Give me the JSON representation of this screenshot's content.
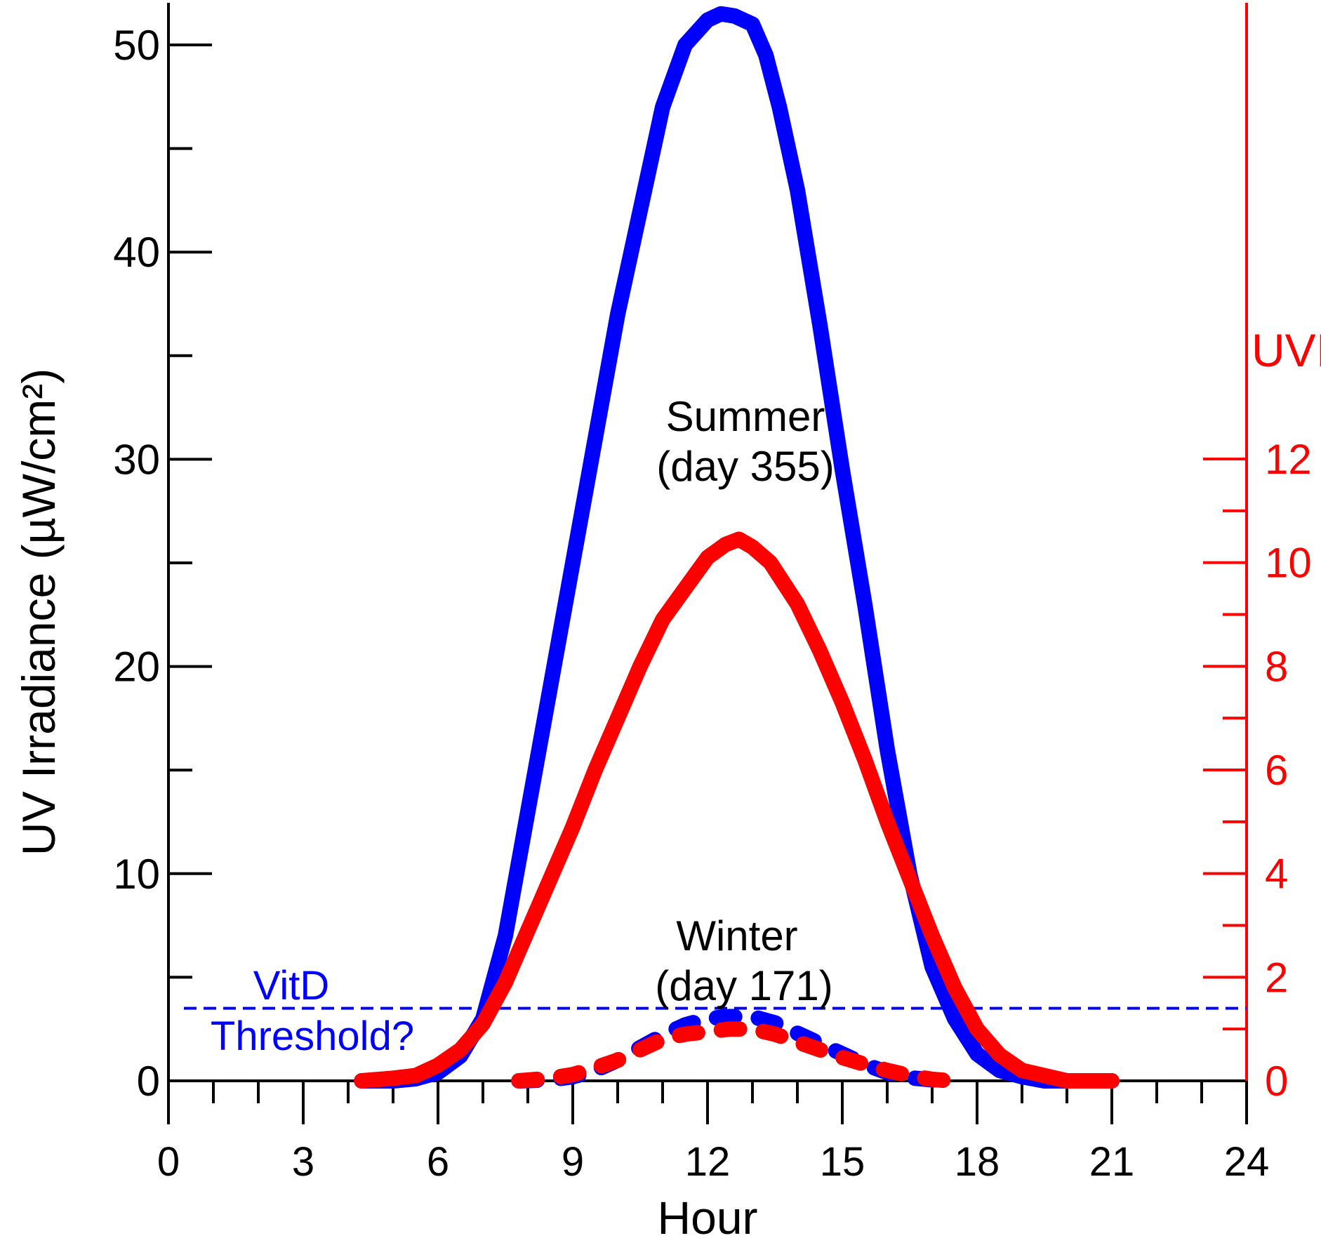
{
  "chart_data": {
    "type": "line",
    "xlabel": "Hour",
    "ylabel": "UV Irradiance (µW/cm²)",
    "y2label": "UVI",
    "xlim": [
      0,
      24
    ],
    "ylim": [
      0,
      52
    ],
    "y2lim": [
      0,
      20.8
    ],
    "x_ticks": [
      "0",
      "3",
      "6",
      "9",
      "12",
      "15",
      "18",
      "21",
      "24"
    ],
    "y_ticks": [
      "0",
      "10",
      "20",
      "30",
      "40",
      "50"
    ],
    "y2_ticks": [
      "0",
      "2",
      "4",
      "6",
      "8",
      "10",
      "12"
    ],
    "grid": false,
    "colors": {
      "irradiance": "#0000ff",
      "uvi": "#ff0000",
      "axis": "#000000",
      "uvi_axis": "#ff0000"
    },
    "threshold": {
      "label_line1": "VitD",
      "label_line2": "Threshold?",
      "value": 3.5,
      "color": "#0000ff",
      "style": "dashed"
    },
    "annotations": {
      "summer_line1": "Summer",
      "summer_line2": "(day 355)",
      "winter_line1": "Winter",
      "winter_line2": "(day 171)"
    },
    "series": [
      {
        "axis": "left",
        "color": "#0000ff",
        "style": "solid",
        "x": [
          4.3,
          5.0,
          5.5,
          6.0,
          6.5,
          7.0,
          7.5,
          8.0,
          8.5,
          9.0,
          9.5,
          10.0,
          10.5,
          11.0,
          11.5,
          12.0,
          12.3,
          12.6,
          13.0,
          13.3,
          13.6,
          14.0,
          14.5,
          15.0,
          15.5,
          16.0,
          16.5,
          17.0,
          17.5,
          18.0,
          18.5,
          19.0,
          19.5,
          20.0,
          20.5,
          21.0
        ],
        "y": [
          0.0,
          0.0,
          0.1,
          0.4,
          1.2,
          3.0,
          7.0,
          13.0,
          19.0,
          25.0,
          31.0,
          37.0,
          42.0,
          47.0,
          50.0,
          51.2,
          51.5,
          51.4,
          51.0,
          49.5,
          47.0,
          43.0,
          36.5,
          29.5,
          23.0,
          16.0,
          10.0,
          5.5,
          3.0,
          1.3,
          0.5,
          0.2,
          0.0,
          0.0,
          0.0,
          0.0
        ]
      },
      {
        "axis": "right",
        "color": "#ff0000",
        "style": "solid",
        "x": [
          4.3,
          5.0,
          5.5,
          6.0,
          6.5,
          7.0,
          7.5,
          8.0,
          8.5,
          9.0,
          9.5,
          10.0,
          10.5,
          11.0,
          11.5,
          12.0,
          12.4,
          12.7,
          13.0,
          13.4,
          14.0,
          14.5,
          15.0,
          15.5,
          16.0,
          16.5,
          17.0,
          17.5,
          18.0,
          18.5,
          19.0,
          19.5,
          20.0,
          20.5,
          21.0
        ],
        "y": [
          0.0,
          0.05,
          0.1,
          0.3,
          0.6,
          1.1,
          1.9,
          2.9,
          3.9,
          4.9,
          6.0,
          7.0,
          8.0,
          8.9,
          9.5,
          10.1,
          10.35,
          10.45,
          10.3,
          10.0,
          9.2,
          8.3,
          7.3,
          6.2,
          5.0,
          3.9,
          2.8,
          1.8,
          1.0,
          0.5,
          0.2,
          0.1,
          0.0,
          0.0,
          0.0
        ]
      },
      {
        "axis": "left",
        "color": "#0000ff",
        "style": "dashed",
        "x": [
          7.8,
          8.5,
          9.0,
          9.5,
          10.0,
          10.5,
          11.0,
          11.5,
          12.0,
          12.5,
          13.0,
          13.5,
          14.0,
          14.5,
          15.0,
          15.5,
          16.0,
          16.5,
          17.0,
          17.4
        ],
        "y": [
          0.0,
          0.05,
          0.2,
          0.5,
          1.0,
          1.6,
          2.2,
          2.7,
          3.0,
          3.1,
          3.1,
          2.8,
          2.3,
          1.8,
          1.3,
          0.8,
          0.4,
          0.15,
          0.05,
          0.0
        ]
      },
      {
        "axis": "right",
        "color": "#ff0000",
        "style": "dashed",
        "x": [
          7.8,
          8.5,
          9.0,
          9.5,
          10.0,
          10.5,
          11.0,
          11.5,
          12.0,
          12.5,
          13.0,
          13.5,
          14.0,
          14.5,
          15.0,
          15.5,
          16.0,
          16.5,
          17.0,
          17.4
        ],
        "y": [
          0.0,
          0.05,
          0.12,
          0.25,
          0.4,
          0.6,
          0.8,
          0.9,
          0.95,
          1.0,
          1.0,
          0.9,
          0.75,
          0.6,
          0.45,
          0.32,
          0.2,
          0.1,
          0.03,
          0.0
        ]
      }
    ]
  }
}
